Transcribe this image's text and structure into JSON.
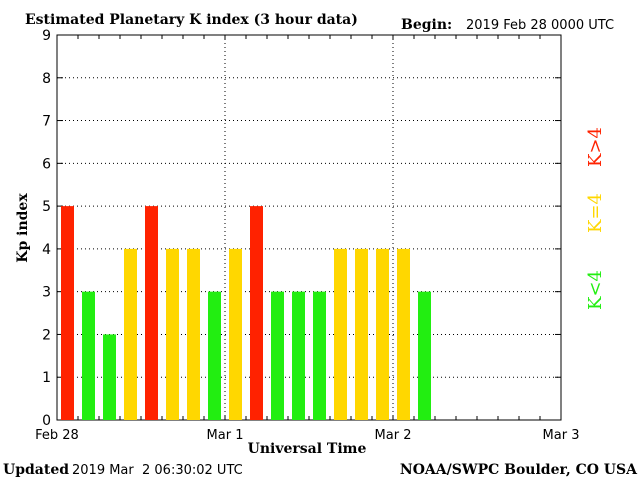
{
  "chart_data": {
    "type": "bar",
    "title": "Estimated Planetary K index (3 hour data)",
    "begin_label": "Begin:",
    "begin_value": "2019 Feb 28 0000 UTC",
    "xlabel": "Universal Time",
    "ylabel": "Kp index",
    "ylim": [
      0,
      9
    ],
    "yticks": [
      "0",
      "1",
      "2",
      "3",
      "4",
      "5",
      "6",
      "7",
      "8",
      "9"
    ],
    "xticks": [
      "Feb 28",
      "Mar 1",
      "Mar 2",
      "Mar 3"
    ],
    "bars_per_day": 8,
    "values": [
      5,
      3,
      2,
      4,
      5,
      4,
      4,
      3,
      4,
      5,
      3,
      3,
      3,
      4,
      4,
      4,
      4,
      3
    ],
    "grid": true,
    "legend": [
      {
        "label": "K<4",
        "color": "#22ee11"
      },
      {
        "label": "K=4",
        "color": "#ffd700"
      },
      {
        "label": "K>4",
        "color": "#ff2200"
      }
    ],
    "colors": {
      "low": "#22ee11",
      "equal": "#ffd700",
      "high": "#ff2200"
    }
  },
  "footer": {
    "updated_label": "Updated",
    "updated_value": "2019 Mar  2 06:30:02 UTC",
    "source": "NOAA/SWPC Boulder, CO USA"
  }
}
